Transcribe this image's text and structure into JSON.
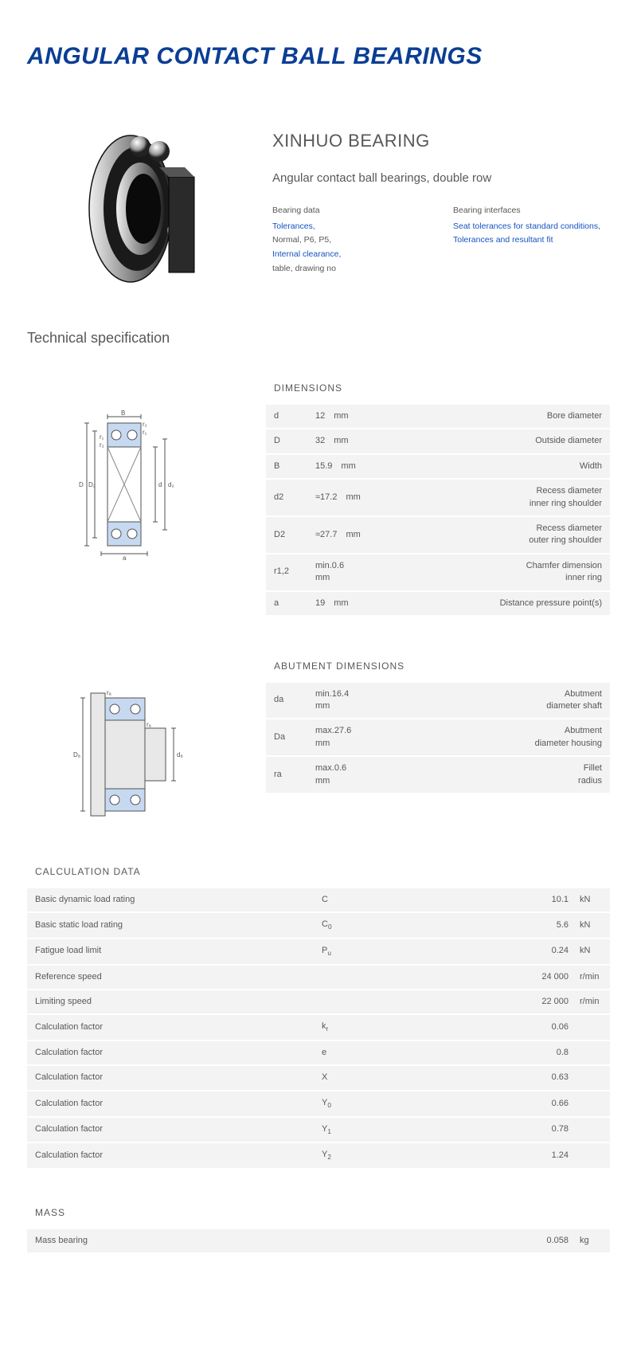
{
  "title": "ANGULAR CONTACT BALL BEARINGS",
  "brand": "XINHUO BEARING",
  "subtitle": "Angular contact ball bearings, double row",
  "bearing_data": {
    "heading": "Bearing data",
    "items": [
      {
        "text": "Tolerances,",
        "link": true
      },
      {
        "text": "Normal, P6, P5,",
        "link": false
      },
      {
        "text": "Internal clearance,",
        "link": true
      },
      {
        "text": "table, drawing no",
        "link": false
      }
    ]
  },
  "bearing_interfaces": {
    "heading": "Bearing interfaces",
    "items": [
      {
        "text": "Seat tolerances for standard conditions,",
        "link": true
      },
      {
        "text": "Tolerances and resultant fit",
        "link": true
      }
    ]
  },
  "tech_heading": "Technical specification",
  "dimensions": {
    "title": "DIMENSIONS",
    "rows": [
      {
        "sym": "d",
        "val": "12",
        "unit": "mm",
        "desc": "Bore diameter"
      },
      {
        "sym": "D",
        "val": "32",
        "unit": "mm",
        "desc": "Outside diameter"
      },
      {
        "sym": "B",
        "val": "15.9",
        "unit": "mm",
        "desc": "Width"
      },
      {
        "sym": "d2",
        "val": "≈17.2",
        "unit": "mm",
        "desc": "Recess diameter inner ring shoulder"
      },
      {
        "sym": "D2",
        "val": "≈27.7",
        "unit": "mm",
        "desc": "Recess diameter outer ring shoulder"
      },
      {
        "sym": "r1,2",
        "val": "min.0.6",
        "unit": "mm",
        "desc": "Chamfer dimension inner ring"
      },
      {
        "sym": "a",
        "val": "19",
        "unit": "mm",
        "desc": "Distance pressure point(s)"
      }
    ]
  },
  "abutment": {
    "title": "ABUTMENT DIMENSIONS",
    "rows": [
      {
        "sym": "da",
        "val": "min.16.4",
        "unit": "mm",
        "desc": "Abutment diameter shaft"
      },
      {
        "sym": "Da",
        "val": "max.27.6",
        "unit": "mm",
        "desc": "Abutment diameter housing"
      },
      {
        "sym": "ra",
        "val": "max.0.6",
        "unit": "mm",
        "desc": "Fillet radius"
      }
    ]
  },
  "calc": {
    "title": "CALCULATION DATA",
    "rows": [
      {
        "label": "Basic dynamic load rating",
        "sym": "C",
        "val": "10.1",
        "unit": "kN"
      },
      {
        "label": "Basic static load rating",
        "sym": "C",
        "sub": "0",
        "val": "5.6",
        "unit": "kN"
      },
      {
        "label": "Fatigue load limit",
        "sym": "P",
        "sub": "u",
        "val": "0.24",
        "unit": "kN"
      },
      {
        "label": "Reference speed",
        "sym": "",
        "val": "24 000",
        "unit": "r/min"
      },
      {
        "label": "Limiting speed",
        "sym": "",
        "val": "22 000",
        "unit": "r/min"
      },
      {
        "label": "Calculation factor",
        "sym": "k",
        "sub": "r",
        "val": "0.06",
        "unit": ""
      },
      {
        "label": "Calculation factor",
        "sym": "e",
        "val": "0.8",
        "unit": ""
      },
      {
        "label": "Calculation factor",
        "sym": "X",
        "val": "0.63",
        "unit": ""
      },
      {
        "label": "Calculation factor",
        "sym": "Y",
        "sub": "0",
        "val": "0.66",
        "unit": ""
      },
      {
        "label": "Calculation factor",
        "sym": "Y",
        "sub": "1",
        "val": "0.78",
        "unit": ""
      },
      {
        "label": "Calculation factor",
        "sym": "Y",
        "sub": "2",
        "val": "1.24",
        "unit": ""
      }
    ]
  },
  "mass": {
    "title": "MASS",
    "rows": [
      {
        "label": "Mass bearing",
        "sym": "",
        "val": "0.058",
        "unit": "kg"
      }
    ]
  },
  "colors": {
    "title": "#0a3e94",
    "link": "#1752c2",
    "row_bg": "#f3f3f3",
    "text": "#585858",
    "diagram_fill": "#c6d9f0",
    "diagram_line": "#525252"
  }
}
